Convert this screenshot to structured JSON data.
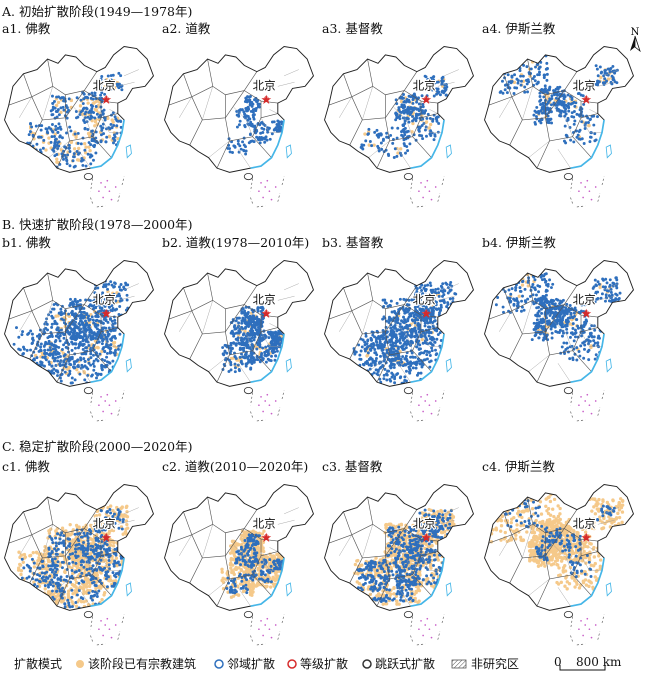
{
  "stages": [
    {
      "title": "A. 初始扩散阶段(1949—1978年)",
      "panels": [
        {
          "label": "a1. 佛教",
          "religion": "buddhism",
          "levels": {
            "existing": 0.15,
            "neighborhood": 0.35,
            "hierarchical": 0.02,
            "leapfrog": 0.04
          }
        },
        {
          "label": "a2. 道教",
          "religion": "taoism",
          "levels": {
            "existing": 0.0,
            "neighborhood": 0.2,
            "hierarchical": 0.02,
            "leapfrog": 0.03
          }
        },
        {
          "label": "a3. 基督教",
          "religion": "christianity",
          "levels": {
            "existing": 0.05,
            "neighborhood": 0.3,
            "hierarchical": 0.02,
            "leapfrog": 0.05
          }
        },
        {
          "label": "a4. 伊斯兰教",
          "religion": "islam",
          "levels": {
            "existing": 0.05,
            "neighborhood": 0.4,
            "hierarchical": 0.02,
            "leapfrog": 0.06
          }
        }
      ]
    },
    {
      "title": "B. 快速扩散阶段(1978—2000年)",
      "panels": [
        {
          "label": "b1. 佛教",
          "religion": "buddhism",
          "levels": {
            "existing": 0.1,
            "neighborhood": 0.85,
            "hierarchical": 0.02,
            "leapfrog": 0.05
          }
        },
        {
          "label": "b2. 道教(1978—2010年)",
          "religion": "taoism",
          "levels": {
            "existing": 0.05,
            "neighborhood": 0.55,
            "hierarchical": 0.02,
            "leapfrog": 0.05
          }
        },
        {
          "label": "b3. 基督教",
          "religion": "christianity",
          "levels": {
            "existing": 0.05,
            "neighborhood": 0.9,
            "hierarchical": 0.02,
            "leapfrog": 0.05
          }
        },
        {
          "label": "b4. 伊斯兰教",
          "religion": "islam",
          "levels": {
            "existing": 0.05,
            "neighborhood": 0.6,
            "hierarchical": 0.02,
            "leapfrog": 0.06
          }
        }
      ]
    },
    {
      "title": "C. 稳定扩散阶段(2000—2020年)",
      "panels": [
        {
          "label": "c1. 佛教",
          "religion": "buddhism",
          "levels": {
            "existing": 0.8,
            "neighborhood": 0.5,
            "hierarchical": 0.02,
            "leapfrog": 0.04
          }
        },
        {
          "label": "c2. 道教(2010—2020年)",
          "religion": "taoism",
          "levels": {
            "existing": 0.6,
            "neighborhood": 0.25,
            "hierarchical": 0.02,
            "leapfrog": 0.03
          }
        },
        {
          "label": "c3. 基督教",
          "religion": "christianity",
          "levels": {
            "existing": 0.75,
            "neighborhood": 0.6,
            "hierarchical": 0.02,
            "leapfrog": 0.05
          }
        },
        {
          "label": "c4. 伊斯兰教",
          "religion": "islam",
          "levels": {
            "existing": 0.85,
            "neighborhood": 0.2,
            "hierarchical": 0.02,
            "leapfrog": 0.05
          }
        }
      ]
    }
  ],
  "capital": {
    "label": "北京",
    "symbol": "star"
  },
  "north_arrow": {
    "label": "N"
  },
  "legend": {
    "title": "扩散模式",
    "items": [
      {
        "label": "该阶段已有宗教建筑",
        "color": "#f5c98a",
        "symbol": "circle-filled"
      },
      {
        "label": "邻域扩散",
        "color": "#2e6fbd",
        "symbol": "circle-outline"
      },
      {
        "label": "等级扩散",
        "color": "#d62a2a",
        "symbol": "circle-outline"
      },
      {
        "label": "跳跃式扩散",
        "color": "#333333",
        "symbol": "circle-outline"
      },
      {
        "label": "非研究区",
        "color": "#777777",
        "symbol": "hatched-box"
      }
    ],
    "scale_zero": "0",
    "scale_value": "800 km"
  },
  "colors": {
    "existing": "#f5c98a",
    "neighborhood": "#2e6fbd",
    "hierarchical": "#d62a2a",
    "coast": "#45b6e8",
    "islands": "#c85fc8",
    "border": "#555555",
    "province": "#9a9a9a"
  }
}
